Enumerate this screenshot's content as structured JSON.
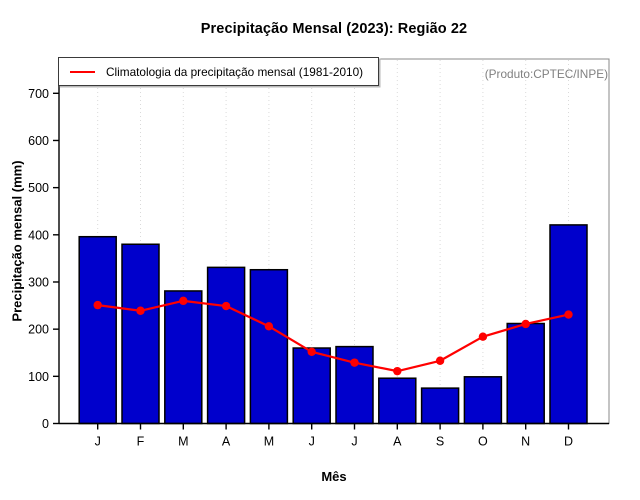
{
  "chart_data": {
    "type": "bar",
    "title": "Precipitação Mensal (2023): Região 22",
    "xlabel": "Mês",
    "ylabel": "Precipitação mensal (mm)",
    "annotation": "(Produto:CPTEC/INPE)",
    "legend_label": "Climatologia da precipitação mensal (1981-2010)",
    "legend_position": "top-left",
    "categories": [
      "J",
      "F",
      "M",
      "A",
      "M",
      "J",
      "J",
      "A",
      "S",
      "O",
      "N",
      "D"
    ],
    "series": [
      {
        "name": "Precipitação mensal 2023",
        "type": "bar",
        "color": "#0000CC",
        "values": [
          396,
          380,
          281,
          331,
          326,
          160,
          163,
          96,
          75,
          99,
          212,
          421
        ]
      },
      {
        "name": "Climatologia da precipitação mensal (1981-2010)",
        "type": "line",
        "color": "#FF0000",
        "values": [
          251,
          239,
          260,
          249,
          206,
          152,
          129,
          111,
          133,
          184,
          211,
          231
        ]
      }
    ],
    "ylim": [
      0,
      700
    ],
    "y_ticks": [
      0,
      100,
      200,
      300,
      400,
      500,
      600,
      700
    ],
    "grid": "vertical-dotted"
  },
  "colors": {
    "bar_fill": "#0000CC",
    "bar_stroke": "#000000",
    "line": "#FF0000",
    "grid": "#DADADA",
    "axis": "#000000",
    "plot_border": "#888888",
    "annotation_text": "#808080"
  }
}
